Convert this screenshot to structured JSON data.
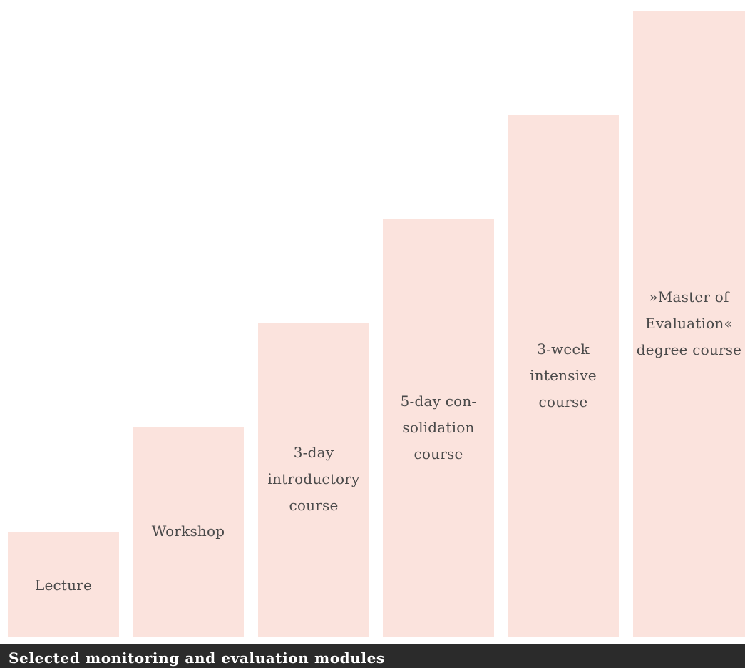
{
  "steps": [
    {
      "label": "Lecture"
    },
    {
      "label": "Workshop"
    },
    {
      "label": "3-day\nintroductory\ncourse"
    },
    {
      "label": "5-day con-\nsolidation\ncourse"
    },
    {
      "label": "3-week\nintensive\ncourse"
    },
    {
      "label": "»Master of\nEvaluation«\ndegree course"
    }
  ],
  "caption": "Selected monitoring and evaluation modules",
  "colors": {
    "step_fill": "#fbe3dd",
    "label_text": "#4a4a4a",
    "caption_bar": "#2b2b2b",
    "caption_text": "#ffffff"
  }
}
